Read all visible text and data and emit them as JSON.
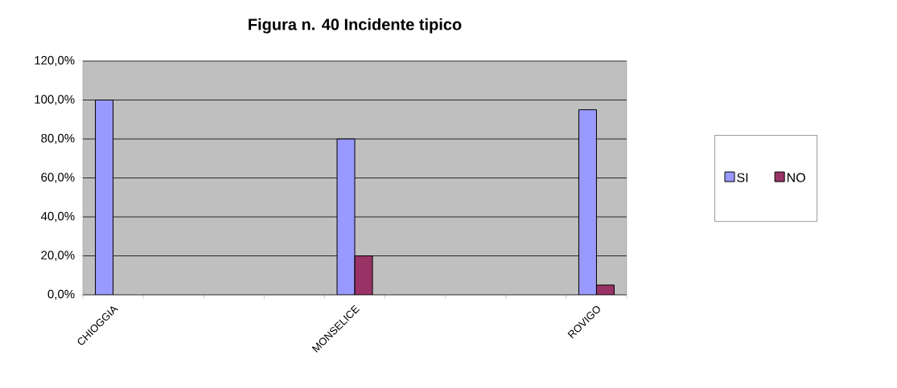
{
  "chart_data": {
    "type": "bar",
    "title": "Figura n. 40 Incidente tipico",
    "categories": [
      "CHIOGGIA",
      null,
      null,
      null,
      "MONSELICE",
      null,
      null,
      null,
      "ROVIGO"
    ],
    "series": [
      {
        "name": "SI",
        "color": "#9999ff",
        "values": [
          100,
          null,
          null,
          null,
          80,
          null,
          null,
          null,
          95
        ]
      },
      {
        "name": "NO",
        "color": "#993366",
        "values": [
          null,
          null,
          null,
          null,
          20,
          null,
          null,
          null,
          5
        ]
      }
    ],
    "ylim": [
      0,
      120
    ],
    "yticks": [
      {
        "value": 0,
        "label": "0,0%"
      },
      {
        "value": 20,
        "label": "20,0%"
      },
      {
        "value": 40,
        "label": "40,0%"
      },
      {
        "value": 60,
        "label": "60,0%"
      },
      {
        "value": 80,
        "label": "80,0%"
      },
      {
        "value": 100,
        "label": "100,0%"
      },
      {
        "value": 120,
        "label": "120,0%"
      }
    ],
    "grid": "y",
    "legend": "right"
  }
}
